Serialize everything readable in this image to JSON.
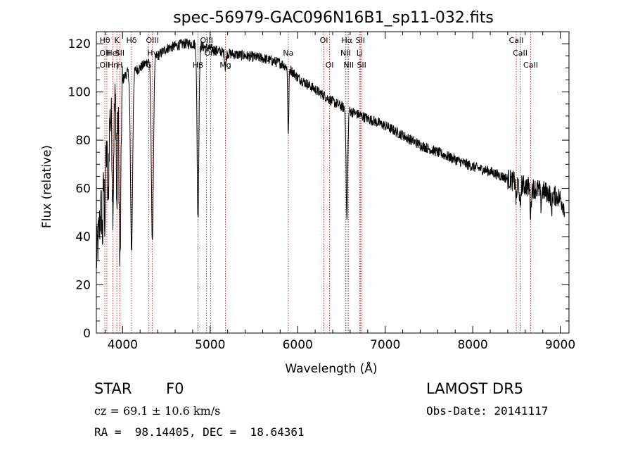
{
  "chart_data": {
    "type": "line",
    "title": "spec-56979-GAC096N16B1_sp11-032.fits",
    "xlabel": "Wavelength (Å)",
    "ylabel": "Flux (relative)",
    "xlim": [
      3700,
      9100
    ],
    "ylim": [
      0,
      125
    ],
    "x_ticks": [
      4000,
      5000,
      6000,
      7000,
      8000,
      9000
    ],
    "y_ticks": [
      0,
      20,
      40,
      60,
      80,
      100,
      120
    ],
    "grid": false,
    "legend": "none",
    "line_color": "#000000",
    "marker_color": "#cc0000",
    "lines": [
      {
        "w": 3797,
        "labels": [
          "Hθ",
          "OII",
          "OII"
        ]
      },
      {
        "w": 3820,
        "labels": [
          "",
          "",
          ""
        ]
      },
      {
        "w": 3889,
        "labels": [
          "",
          "HeI",
          "Hη"
        ]
      },
      {
        "w": 3934,
        "labels": [
          "K",
          "",
          ""
        ]
      },
      {
        "w": 3968,
        "labels": [
          "",
          "SII",
          "H"
        ]
      },
      {
        "w": 4102,
        "labels": [
          "Hδ",
          "",
          ""
        ]
      },
      {
        "w": 4300,
        "labels": [
          "",
          "",
          "G"
        ]
      },
      {
        "w": 4340,
        "labels": [
          "OIII",
          "Hγ",
          ""
        ]
      },
      {
        "w": 4861,
        "labels": [
          "",
          "",
          "Hβ"
        ]
      },
      {
        "w": 4959,
        "labels": [
          "OIII",
          "",
          ""
        ]
      },
      {
        "w": 5007,
        "labels": [
          "",
          "OIII",
          ""
        ]
      },
      {
        "w": 5175,
        "labels": [
          "",
          "",
          "Mg"
        ]
      },
      {
        "w": 5893,
        "labels": [
          "",
          "Na",
          ""
        ]
      },
      {
        "w": 6300,
        "labels": [
          "OI",
          "",
          ""
        ]
      },
      {
        "w": 6364,
        "labels": [
          "",
          "",
          "OI"
        ]
      },
      {
        "w": 6548,
        "labels": [
          "",
          "NII",
          ""
        ]
      },
      {
        "w": 6563,
        "labels": [
          "Hα",
          "",
          ""
        ]
      },
      {
        "w": 6583,
        "labels": [
          "",
          "",
          "NII"
        ]
      },
      {
        "w": 6708,
        "labels": [
          "",
          "Li",
          ""
        ]
      },
      {
        "w": 6716,
        "labels": [
          "SII",
          "",
          ""
        ]
      },
      {
        "w": 6731,
        "labels": [
          "",
          "",
          "SII"
        ]
      },
      {
        "w": 8498,
        "labels": [
          "CaII",
          "",
          ""
        ]
      },
      {
        "w": 8542,
        "labels": [
          "",
          "CaII",
          ""
        ]
      },
      {
        "w": 8662,
        "labels": [
          "",
          "",
          "CaII"
        ]
      }
    ],
    "continuum": [
      [
        3700,
        30
      ],
      [
        3750,
        50
      ],
      [
        3800,
        70
      ],
      [
        3850,
        88
      ],
      [
        3900,
        95
      ],
      [
        3950,
        100
      ],
      [
        4000,
        105
      ],
      [
        4050,
        108
      ],
      [
        4100,
        109
      ],
      [
        4150,
        109
      ],
      [
        4200,
        110
      ],
      [
        4300,
        113
      ],
      [
        4400,
        115
      ],
      [
        4500,
        118
      ],
      [
        4600,
        119
      ],
      [
        4700,
        120
      ],
      [
        4800,
        120
      ],
      [
        4900,
        119
      ],
      [
        5000,
        118
      ],
      [
        5200,
        116
      ],
      [
        5400,
        115
      ],
      [
        5600,
        114
      ],
      [
        5800,
        112
      ],
      [
        5900,
        110
      ],
      [
        6000,
        106
      ],
      [
        6200,
        101
      ],
      [
        6400,
        96
      ],
      [
        6600,
        92
      ],
      [
        6800,
        89
      ],
      [
        7000,
        86
      ],
      [
        7200,
        82
      ],
      [
        7400,
        78
      ],
      [
        7600,
        75
      ],
      [
        7800,
        72
      ],
      [
        8000,
        69
      ],
      [
        8200,
        67
      ],
      [
        8400,
        64
      ],
      [
        8600,
        61
      ],
      [
        8800,
        59
      ],
      [
        9000,
        56
      ],
      [
        9050,
        52
      ]
    ],
    "absorption": [
      {
        "w": 3770,
        "depth": 18,
        "width": 6
      },
      {
        "w": 3798,
        "depth": 22,
        "width": 6
      },
      {
        "w": 3835,
        "depth": 30,
        "width": 7
      },
      {
        "w": 3889,
        "depth": 40,
        "width": 8
      },
      {
        "w": 3934,
        "depth": 48,
        "width": 6
      },
      {
        "w": 3970,
        "depth": 75,
        "width": 10
      },
      {
        "w": 4102,
        "depth": 75,
        "width": 12
      },
      {
        "w": 4340,
        "depth": 75,
        "width": 12
      },
      {
        "w": 4861,
        "depth": 72,
        "width": 10
      },
      {
        "w": 5175,
        "depth": 6,
        "width": 8
      },
      {
        "w": 5893,
        "depth": 28,
        "width": 6
      },
      {
        "w": 6563,
        "depth": 46,
        "width": 9
      },
      {
        "w": 8498,
        "depth": 8,
        "width": 6
      },
      {
        "w": 8542,
        "depth": 12,
        "width": 6
      },
      {
        "w": 8662,
        "depth": 11,
        "width": 6
      },
      {
        "w": 8780,
        "depth": 6,
        "width": 6
      },
      {
        "w": 8900,
        "depth": 7,
        "width": 6
      }
    ],
    "noise_amplitude": 2.2
  },
  "info": {
    "class": "STAR",
    "subclass": "F0",
    "survey": "LAMOST DR5",
    "cz": "cz = 69.1 ± 10.6 km/s",
    "obs_date": "Obs-Date: 20141117",
    "coords": "RA =  98.14405, DEC =  18.64361"
  }
}
